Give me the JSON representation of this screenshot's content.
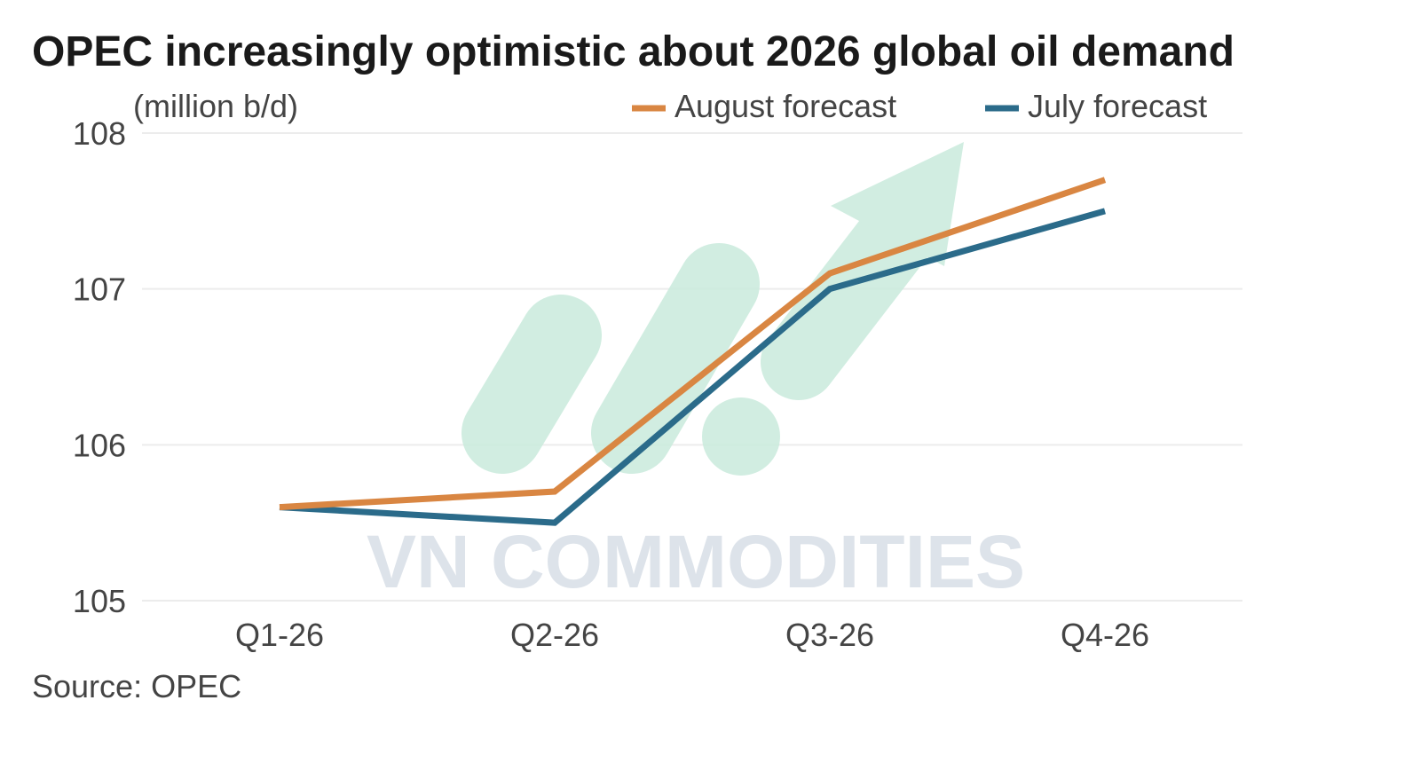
{
  "chart_data": {
    "type": "line",
    "title": "OPEC increasingly optimistic about 2026 global oil demand",
    "subtitle": "(million b/d)",
    "categories": [
      "Q1-26",
      "Q2-26",
      "Q3-26",
      "Q4-26"
    ],
    "series": [
      {
        "name": "August forecast",
        "color": "#d98642",
        "values": [
          105.6,
          105.7,
          107.1,
          107.7
        ]
      },
      {
        "name": "July forecast",
        "color": "#2b6b8a",
        "values": [
          105.6,
          105.5,
          107.0,
          107.5
        ]
      }
    ],
    "yticks": [
      105,
      106,
      107,
      108
    ],
    "ylim": [
      105,
      108
    ],
    "grid": true,
    "legend_position": "top-right",
    "source": "Source: OPEC"
  },
  "watermark": {
    "text": "VN COMMODITIES",
    "colors": {
      "mark": "#c9ebdc",
      "text": "#dde3ea"
    }
  }
}
